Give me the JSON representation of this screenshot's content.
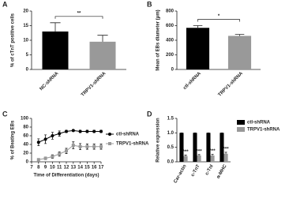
{
  "chart_data": [
    {
      "type": "bar",
      "panel": "A",
      "y_label": "% of cTnT positive cells",
      "categories": [
        "NC-shRNA",
        "TRPV1-shRNA"
      ],
      "values": [
        13,
        9.5
      ],
      "errors": [
        3,
        2.2
      ],
      "colors": [
        "#000000",
        "#999999"
      ],
      "ylim": [
        0,
        20
      ],
      "yticks": [
        0,
        5,
        10,
        15,
        20
      ],
      "significance": "**"
    },
    {
      "type": "bar",
      "panel": "B",
      "y_label": "Mean of EBs diameter (μm)",
      "categories": [
        "ctl-shRNA",
        "TRPV1-shRNA"
      ],
      "values": [
        570,
        460
      ],
      "errors": [
        30,
        20
      ],
      "colors": [
        "#000000",
        "#999999"
      ],
      "ylim": [
        0,
        800
      ],
      "yticks": [
        0,
        200,
        400,
        600,
        800
      ],
      "significance": "*"
    },
    {
      "type": "line",
      "panel": "C",
      "y_label": "% of Beating EBs",
      "x_label": "Time of Differentiation (days)",
      "x": [
        8,
        9,
        10,
        11,
        12,
        13,
        14,
        15,
        16,
        17
      ],
      "series": [
        {
          "name": "ctl-shRNA",
          "color": "#000000",
          "marker": "circle",
          "values": [
            45,
            52,
            60,
            65,
            70,
            72,
            70,
            70,
            70,
            70
          ],
          "errors": [
            8,
            10,
            8,
            6,
            3,
            2,
            3,
            3,
            3,
            3
          ]
        },
        {
          "name": "TRPV1-shRNA",
          "color": "#999999",
          "marker": "square",
          "values": [
            5,
            8,
            12,
            18,
            25,
            38,
            35,
            35,
            35,
            35
          ],
          "errors": [
            2,
            3,
            4,
            5,
            6,
            8,
            7,
            6,
            6,
            6
          ]
        }
      ],
      "xlim": [
        7,
        17
      ],
      "xticks": [
        7,
        8,
        9,
        10,
        11,
        12,
        13,
        14,
        15,
        16,
        17
      ],
      "ylim": [
        0,
        100
      ],
      "yticks": [
        0,
        20,
        40,
        60,
        80,
        100
      ]
    },
    {
      "type": "grouped_bar",
      "panel": "D",
      "y_label": "Relative expression",
      "categories": [
        "Car-actin",
        "c-TnT",
        "c-TnI",
        "α-MHC"
      ],
      "series": [
        {
          "name": "ctl-shRNA",
          "color": "#000000",
          "values": [
            1,
            1,
            1,
            1
          ],
          "errors": [
            0,
            0,
            0,
            0
          ]
        },
        {
          "name": "TRPV1-shRNA",
          "color": "#999999",
          "values": [
            0.2,
            0.22,
            0.22,
            0.28
          ],
          "errors": [
            0.03,
            0.03,
            0.04,
            0.05
          ]
        }
      ],
      "significance": [
        "***",
        "***",
        "***",
        "***"
      ],
      "ylim": [
        0,
        1.5
      ],
      "yticks": [
        {
          "value": 0,
          "label": "0.0"
        },
        {
          "value": 0.5,
          "label": "0.5"
        },
        {
          "value": 1,
          "label": "1.0"
        },
        {
          "value": 1.5,
          "label": "1.5"
        }
      ]
    }
  ]
}
